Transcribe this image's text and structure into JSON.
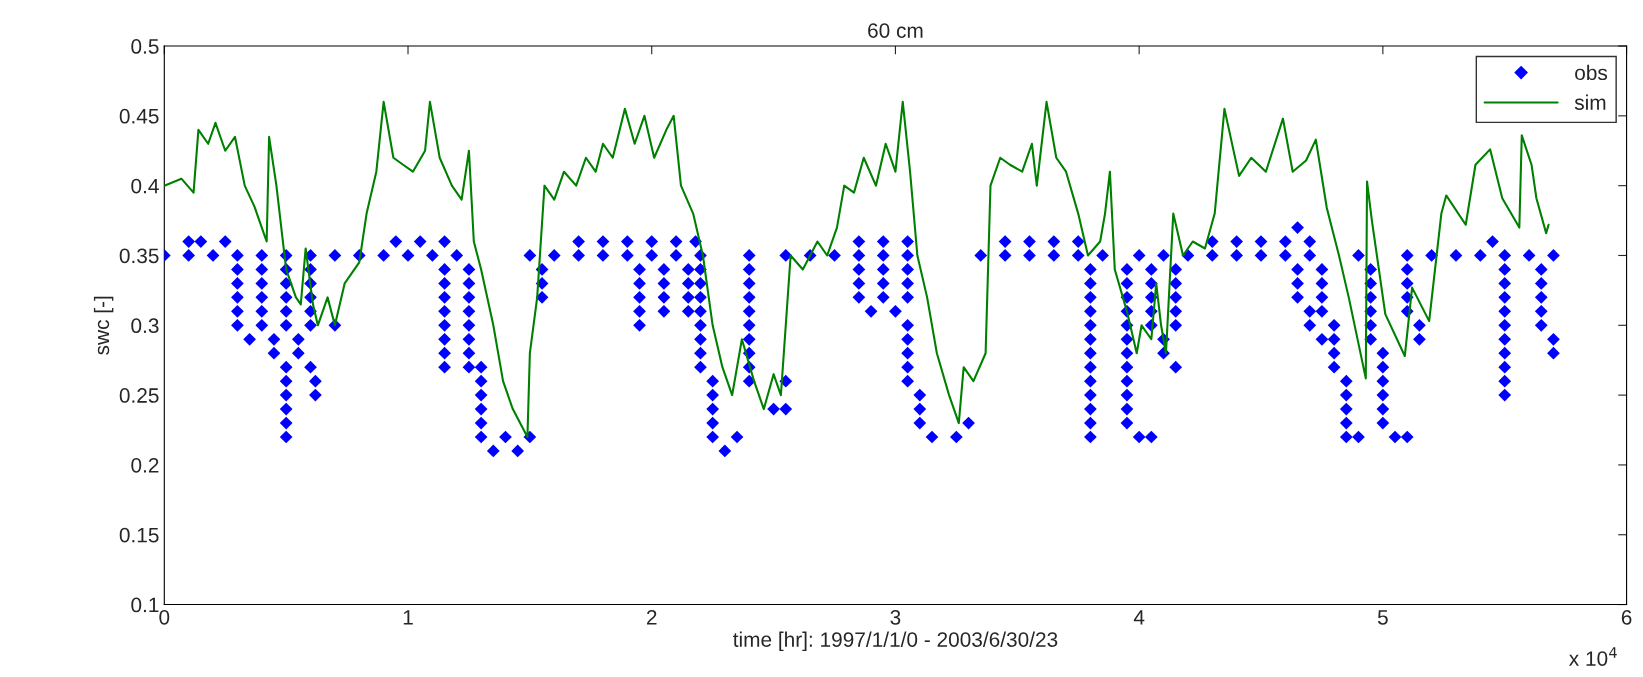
{
  "chart_data": {
    "type": "line",
    "title": "60 cm",
    "xlabel": "time [hr]: 1997/1/1/0 - 2003/6/30/23",
    "ylabel": "swc [-]",
    "annotations": [
      "x 10$^{4}$"
    ],
    "xlim": [
      0,
      6
    ],
    "xticks": [
      0,
      1,
      2,
      3,
      4,
      5,
      6
    ],
    "ylim": [
      0.1,
      0.5
    ],
    "yticks": [
      0.1,
      0.15,
      0.2,
      0.25,
      0.3,
      0.35,
      0.4,
      0.45,
      0.5
    ],
    "legend": "top right",
    "series": [
      {
        "name": "obs",
        "type": "scatter",
        "color": "#0000ff",
        "marker": "diamond",
        "x": [
          4.65,
          0.1,
          0.15,
          0.25,
          0.95,
          1.05,
          1.15,
          1.7,
          1.8,
          1.9,
          2.0,
          2.1,
          2.18,
          2.85,
          2.95,
          3.05,
          3.45,
          3.55,
          3.65,
          3.75,
          4.3,
          4.4,
          4.5,
          4.6,
          4.7,
          5.45,
          0,
          0.1,
          0.2,
          0.3,
          0.4,
          0.5,
          0.6,
          0.7,
          0.8,
          0.9,
          1.0,
          1.1,
          1.2,
          1.5,
          1.6,
          1.7,
          1.8,
          1.9,
          2.0,
          2.1,
          2.2,
          2.4,
          2.55,
          2.65,
          2.75,
          2.85,
          2.95,
          3.05,
          3.35,
          3.45,
          3.55,
          3.65,
          3.75,
          3.85,
          4.0,
          4.1,
          4.2,
          4.3,
          4.4,
          4.5,
          4.6,
          4.7,
          4.9,
          5.1,
          5.2,
          5.3,
          5.4,
          5.5,
          5.6,
          5.7,
          0.3,
          0.4,
          0.5,
          0.6,
          1.15,
          1.25,
          1.55,
          1.95,
          2.05,
          2.15,
          2.2,
          2.4,
          2.85,
          2.95,
          3.05,
          3.8,
          3.95,
          4.05,
          4.15,
          4.65,
          4.75,
          4.95,
          5.1,
          5.5,
          5.65,
          0.3,
          0.4,
          0.5,
          0.6,
          1.15,
          1.25,
          1.55,
          1.95,
          2.05,
          2.15,
          2.2,
          2.4,
          2.85,
          2.95,
          3.05,
          3.8,
          3.95,
          4.05,
          4.15,
          4.65,
          4.75,
          4.95,
          5.1,
          5.5,
          5.65,
          0.3,
          0.4,
          0.5,
          0.6,
          1.15,
          1.25,
          1.55,
          1.95,
          2.05,
          2.15,
          2.2,
          2.4,
          2.85,
          2.95,
          3.05,
          3.8,
          3.95,
          4.05,
          4.15,
          4.65,
          4.75,
          4.95,
          5.1,
          5.5,
          5.65,
          0.3,
          0.4,
          0.5,
          0.6,
          1.15,
          1.25,
          1.95,
          2.05,
          2.15,
          2.2,
          2.4,
          2.9,
          3.0,
          3.8,
          3.95,
          4.05,
          4.15,
          4.7,
          4.75,
          4.95,
          5.1,
          5.5,
          5.65,
          0.3,
          0.4,
          0.5,
          0.6,
          0.7,
          1.15,
          1.25,
          1.95,
          2.2,
          2.4,
          3.05,
          3.8,
          3.95,
          4.05,
          4.15,
          4.7,
          4.8,
          4.95,
          5.15,
          5.5,
          5.65,
          0.35,
          0.45,
          0.55,
          1.15,
          1.25,
          2.2,
          2.4,
          3.05,
          3.8,
          3.95,
          4.1,
          4.75,
          4.8,
          4.95,
          5.15,
          5.5,
          5.7,
          0.45,
          0.55,
          1.15,
          1.25,
          2.2,
          2.4,
          3.05,
          3.8,
          3.95,
          4.1,
          4.8,
          5.0,
          5.5,
          5.7,
          0.5,
          0.6,
          1.15,
          1.25,
          1.3,
          2.2,
          2.4,
          3.05,
          3.8,
          3.95,
          4.15,
          4.8,
          5.0,
          5.5,
          0.5,
          0.62,
          1.3,
          2.25,
          2.4,
          2.55,
          3.05,
          3.8,
          3.95,
          4.85,
          5.0,
          5.5,
          0.5,
          0.62,
          1.3,
          2.25,
          3.1,
          3.8,
          3.95,
          4.85,
          5.0,
          5.5,
          0.5,
          1.3,
          2.25,
          2.5,
          2.55,
          3.1,
          3.8,
          3.95,
          4.85,
          5.0,
          0.5,
          1.3,
          2.25,
          3.1,
          3.3,
          3.8,
          3.95,
          4.85,
          5.0,
          0.5,
          1.3,
          1.4,
          1.5,
          2.25,
          2.35,
          3.15,
          3.25,
          3.8,
          4.0,
          4.05,
          4.85,
          4.9,
          5.05,
          5.1,
          1.35,
          1.45,
          2.3
        ],
        "values": [
          0.37,
          0.36,
          0.36,
          0.36,
          0.36,
          0.36,
          0.36,
          0.36,
          0.36,
          0.36,
          0.36,
          0.36,
          0.36,
          0.36,
          0.36,
          0.36,
          0.36,
          0.36,
          0.36,
          0.36,
          0.36,
          0.36,
          0.36,
          0.36,
          0.36,
          0.36,
          0.35,
          0.35,
          0.35,
          0.35,
          0.35,
          0.35,
          0.35,
          0.35,
          0.35,
          0.35,
          0.35,
          0.35,
          0.35,
          0.35,
          0.35,
          0.35,
          0.35,
          0.35,
          0.35,
          0.35,
          0.35,
          0.35,
          0.35,
          0.35,
          0.35,
          0.35,
          0.35,
          0.35,
          0.35,
          0.35,
          0.35,
          0.35,
          0.35,
          0.35,
          0.35,
          0.35,
          0.35,
          0.35,
          0.35,
          0.35,
          0.35,
          0.35,
          0.35,
          0.35,
          0.35,
          0.35,
          0.35,
          0.35,
          0.35,
          0.35,
          0.34,
          0.34,
          0.34,
          0.34,
          0.34,
          0.34,
          0.34,
          0.34,
          0.34,
          0.34,
          0.34,
          0.34,
          0.34,
          0.34,
          0.34,
          0.34,
          0.34,
          0.34,
          0.34,
          0.34,
          0.34,
          0.34,
          0.34,
          0.34,
          0.34,
          0.33,
          0.33,
          0.33,
          0.33,
          0.33,
          0.33,
          0.33,
          0.33,
          0.33,
          0.33,
          0.33,
          0.33,
          0.33,
          0.33,
          0.33,
          0.33,
          0.33,
          0.33,
          0.33,
          0.33,
          0.33,
          0.33,
          0.33,
          0.33,
          0.33,
          0.32,
          0.32,
          0.32,
          0.32,
          0.32,
          0.32,
          0.32,
          0.32,
          0.32,
          0.32,
          0.32,
          0.32,
          0.32,
          0.32,
          0.32,
          0.32,
          0.32,
          0.32,
          0.32,
          0.32,
          0.32,
          0.32,
          0.32,
          0.32,
          0.32,
          0.31,
          0.31,
          0.31,
          0.31,
          0.31,
          0.31,
          0.31,
          0.31,
          0.31,
          0.31,
          0.31,
          0.31,
          0.31,
          0.31,
          0.31,
          0.31,
          0.31,
          0.31,
          0.31,
          0.31,
          0.31,
          0.31,
          0.31,
          0.3,
          0.3,
          0.3,
          0.3,
          0.3,
          0.3,
          0.3,
          0.3,
          0.3,
          0.3,
          0.3,
          0.3,
          0.3,
          0.3,
          0.3,
          0.3,
          0.3,
          0.3,
          0.3,
          0.3,
          0.3,
          0.29,
          0.29,
          0.29,
          0.29,
          0.29,
          0.29,
          0.29,
          0.29,
          0.29,
          0.29,
          0.29,
          0.29,
          0.29,
          0.29,
          0.29,
          0.29,
          0.29,
          0.28,
          0.28,
          0.28,
          0.28,
          0.28,
          0.28,
          0.28,
          0.28,
          0.28,
          0.28,
          0.28,
          0.28,
          0.28,
          0.28,
          0.27,
          0.27,
          0.27,
          0.27,
          0.27,
          0.27,
          0.27,
          0.27,
          0.27,
          0.27,
          0.27,
          0.27,
          0.27,
          0.27,
          0.26,
          0.26,
          0.26,
          0.26,
          0.26,
          0.26,
          0.26,
          0.26,
          0.26,
          0.26,
          0.26,
          0.26,
          0.25,
          0.25,
          0.25,
          0.25,
          0.25,
          0.25,
          0.25,
          0.25,
          0.25,
          0.25,
          0.24,
          0.24,
          0.24,
          0.24,
          0.24,
          0.24,
          0.24,
          0.24,
          0.24,
          0.24,
          0.23,
          0.23,
          0.23,
          0.23,
          0.23,
          0.23,
          0.23,
          0.23,
          0.23,
          0.22,
          0.22,
          0.22,
          0.22,
          0.22,
          0.22,
          0.22,
          0.22,
          0.22,
          0.22,
          0.22,
          0.22,
          0.22,
          0.22,
          0.22,
          0.21,
          0.21,
          0.21
        ]
      },
      {
        "name": "sim",
        "color": "#008000",
        "line_style": "solid",
        "x": [
          0,
          0.07,
          0.12,
          0.14,
          0.18,
          0.21,
          0.25,
          0.29,
          0.33,
          0.37,
          0.4,
          0.42,
          0.43,
          0.46,
          0.5,
          0.54,
          0.56,
          0.58,
          0.61,
          0.63,
          0.67,
          0.7,
          0.74,
          0.8,
          0.83,
          0.87,
          0.9,
          0.94,
          0.98,
          1.02,
          1.07,
          1.09,
          1.13,
          1.18,
          1.22,
          1.25,
          1.27,
          1.3,
          1.35,
          1.39,
          1.43,
          1.49,
          1.5,
          1.53,
          1.56,
          1.6,
          1.64,
          1.69,
          1.73,
          1.77,
          1.8,
          1.84,
          1.89,
          1.93,
          1.97,
          2.01,
          2.06,
          2.09,
          2.12,
          2.17,
          2.21,
          2.25,
          2.29,
          2.33,
          2.37,
          2.42,
          2.46,
          2.5,
          2.53,
          2.57,
          2.62,
          2.68,
          2.72,
          2.76,
          2.79,
          2.83,
          2.87,
          2.92,
          2.96,
          3.0,
          3.03,
          3.06,
          3.09,
          3.13,
          3.17,
          3.22,
          3.26,
          3.28,
          3.32,
          3.37,
          3.39,
          3.43,
          3.47,
          3.52,
          3.56,
          3.58,
          3.62,
          3.66,
          3.7,
          3.75,
          3.79,
          3.84,
          3.86,
          3.88,
          3.9,
          3.95,
          3.99,
          4.01,
          4.05,
          4.07,
          4.09,
          4.11,
          4.14,
          4.18,
          4.22,
          4.27,
          4.31,
          4.35,
          4.41,
          4.46,
          4.52,
          4.59,
          4.63,
          4.685,
          4.725,
          4.77,
          4.82,
          4.86,
          4.93,
          4.935,
          4.955,
          5.01,
          5.09,
          5.12,
          5.19,
          5.24,
          5.26,
          5.34,
          5.38,
          5.44,
          5.49,
          5.56,
          5.57,
          5.61,
          5.63,
          5.67,
          5.68
        ],
        "values": [
          0.4,
          0.405,
          0.395,
          0.44,
          0.43,
          0.445,
          0.425,
          0.435,
          0.4,
          0.385,
          0.37,
          0.36,
          0.435,
          0.4,
          0.34,
          0.32,
          0.315,
          0.355,
          0.315,
          0.3,
          0.32,
          0.3,
          0.33,
          0.345,
          0.38,
          0.41,
          0.46,
          0.42,
          0.415,
          0.41,
          0.425,
          0.46,
          0.42,
          0.4,
          0.39,
          0.425,
          0.36,
          0.34,
          0.3,
          0.26,
          0.24,
          0.22,
          0.28,
          0.32,
          0.4,
          0.39,
          0.41,
          0.4,
          0.42,
          0.41,
          0.43,
          0.42,
          0.455,
          0.43,
          0.45,
          0.42,
          0.44,
          0.45,
          0.4,
          0.38,
          0.35,
          0.3,
          0.27,
          0.25,
          0.29,
          0.26,
          0.24,
          0.265,
          0.25,
          0.35,
          0.34,
          0.36,
          0.35,
          0.37,
          0.4,
          0.395,
          0.42,
          0.4,
          0.43,
          0.41,
          0.46,
          0.41,
          0.35,
          0.32,
          0.28,
          0.25,
          0.23,
          0.27,
          0.26,
          0.28,
          0.4,
          0.42,
          0.415,
          0.41,
          0.43,
          0.4,
          0.46,
          0.42,
          0.41,
          0.38,
          0.35,
          0.36,
          0.38,
          0.41,
          0.34,
          0.31,
          0.28,
          0.3,
          0.29,
          0.33,
          0.3,
          0.28,
          0.38,
          0.35,
          0.36,
          0.355,
          0.38,
          0.455,
          0.407,
          0.42,
          0.41,
          0.448,
          0.41,
          0.418,
          0.433,
          0.384,
          0.35,
          0.32,
          0.262,
          0.403,
          0.375,
          0.308,
          0.278,
          0.327,
          0.303,
          0.38,
          0.393,
          0.372,
          0.415,
          0.426,
          0.391,
          0.37,
          0.436,
          0.415,
          0.391,
          0.366,
          0.372
        ]
      }
    ]
  }
}
